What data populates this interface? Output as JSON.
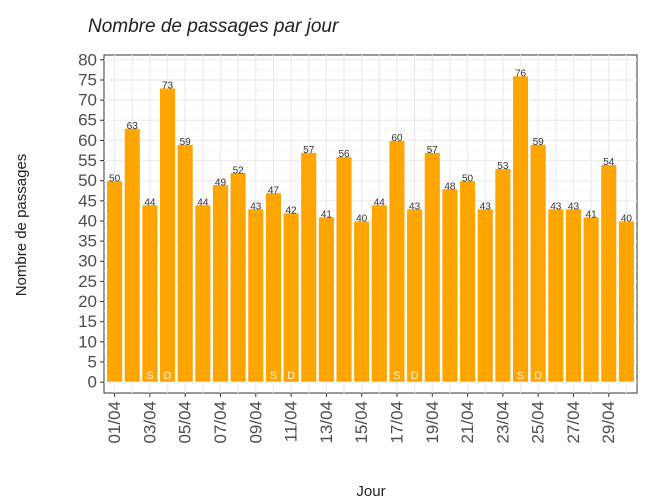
{
  "chart_data": {
    "type": "bar",
    "title": "Nombre de passages par jour",
    "x_label": "Jour",
    "y_label": "Nombre de passages",
    "categories": [
      "01/04",
      null,
      "03/04",
      null,
      "05/04",
      null,
      "07/04",
      null,
      "09/04",
      null,
      "11/04",
      null,
      "13/04",
      null,
      "15/04",
      null,
      "17/04",
      null,
      "19/04",
      null,
      "21/04",
      null,
      "23/04",
      null,
      "25/04",
      null,
      "27/04",
      null,
      "29/04",
      null
    ],
    "values": [
      50,
      63,
      44,
      73,
      59,
      44,
      49,
      52,
      43,
      47,
      42,
      57,
      41,
      56,
      40,
      44,
      60,
      43,
      57,
      48,
      50,
      43,
      53,
      76,
      59,
      43,
      43,
      41,
      54,
      40
    ],
    "day_labels": [
      null,
      null,
      "S",
      "D",
      null,
      null,
      null,
      null,
      null,
      "S",
      "D",
      null,
      null,
      null,
      null,
      null,
      "S",
      "D",
      null,
      null,
      null,
      null,
      null,
      "S",
      "D",
      null,
      null,
      null,
      null,
      null
    ],
    "color": "#FFA500",
    "ylim": [
      -2.7,
      81.2
    ],
    "yticks": [
      0,
      5,
      10,
      15,
      20,
      25,
      30,
      35,
      40,
      45,
      50,
      55,
      60,
      65,
      70,
      75,
      80
    ],
    "grid": true
  }
}
